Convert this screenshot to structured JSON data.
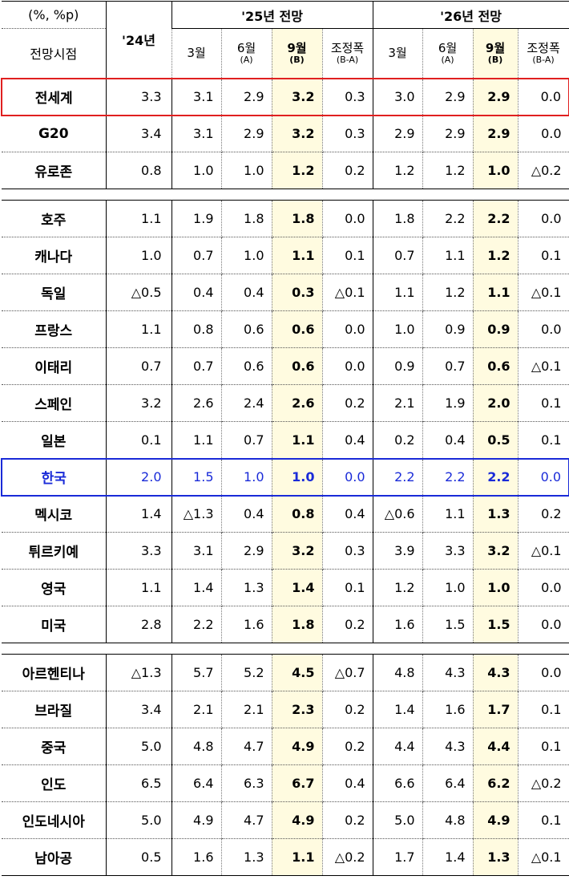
{
  "header": {
    "unit": "(%, %p)",
    "outlook_point": "전망시점",
    "year24": "'24년",
    "year25": "'25년 전망",
    "year26": "'26년 전망",
    "months": [
      {
        "main": "3월",
        "sub": ""
      },
      {
        "main": "6월",
        "sub": "(A)"
      },
      {
        "main": "9월",
        "sub": "(B)"
      },
      {
        "main": "조정폭",
        "sub": "(B-A)"
      },
      {
        "main": "3월",
        "sub": ""
      },
      {
        "main": "6월",
        "sub": "(A)"
      },
      {
        "main": "9월",
        "sub": "(B)"
      },
      {
        "main": "조정폭",
        "sub": "(B-A)"
      }
    ]
  },
  "rows": [
    {
      "name": "전세계",
      "v": [
        "3.3",
        "3.1",
        "2.9",
        "3.2",
        "0.3",
        "3.0",
        "2.9",
        "2.9",
        "0.0"
      ]
    },
    {
      "name": "G20",
      "v": [
        "3.4",
        "3.1",
        "2.9",
        "3.2",
        "0.3",
        "2.9",
        "2.9",
        "2.9",
        "0.0"
      ]
    },
    {
      "name": "유로존",
      "v": [
        "0.8",
        "1.0",
        "1.0",
        "1.2",
        "0.2",
        "1.2",
        "1.2",
        "1.0",
        "△0.2"
      ]
    },
    {
      "name": "호주",
      "v": [
        "1.1",
        "1.9",
        "1.8",
        "1.8",
        "0.0",
        "1.8",
        "2.2",
        "2.2",
        "0.0"
      ]
    },
    {
      "name": "캐나다",
      "v": [
        "1.0",
        "0.7",
        "1.0",
        "1.1",
        "0.1",
        "0.7",
        "1.1",
        "1.2",
        "0.1"
      ]
    },
    {
      "name": "독일",
      "v": [
        "△0.5",
        "0.4",
        "0.4",
        "0.3",
        "△0.1",
        "1.1",
        "1.2",
        "1.1",
        "△0.1"
      ]
    },
    {
      "name": "프랑스",
      "v": [
        "1.1",
        "0.8",
        "0.6",
        "0.6",
        "0.0",
        "1.0",
        "0.9",
        "0.9",
        "0.0"
      ]
    },
    {
      "name": "이태리",
      "v": [
        "0.7",
        "0.7",
        "0.6",
        "0.6",
        "0.0",
        "0.9",
        "0.7",
        "0.6",
        "△0.1"
      ]
    },
    {
      "name": "스페인",
      "v": [
        "3.2",
        "2.6",
        "2.4",
        "2.6",
        "0.2",
        "2.1",
        "1.9",
        "2.0",
        "0.1"
      ]
    },
    {
      "name": "일본",
      "v": [
        "0.1",
        "1.1",
        "0.7",
        "1.1",
        "0.4",
        "0.2",
        "0.4",
        "0.5",
        "0.1"
      ]
    },
    {
      "name": "한국",
      "v": [
        "2.0",
        "1.5",
        "1.0",
        "1.0",
        "0.0",
        "2.2",
        "2.2",
        "2.2",
        "0.0"
      ]
    },
    {
      "name": "멕시코",
      "v": [
        "1.4",
        "△1.3",
        "0.4",
        "0.8",
        "0.4",
        "△0.6",
        "1.1",
        "1.3",
        "0.2"
      ]
    },
    {
      "name": "튀르키예",
      "v": [
        "3.3",
        "3.1",
        "2.9",
        "3.2",
        "0.3",
        "3.9",
        "3.3",
        "3.2",
        "△0.1"
      ]
    },
    {
      "name": "영국",
      "v": [
        "1.1",
        "1.4",
        "1.3",
        "1.4",
        "0.1",
        "1.2",
        "1.0",
        "1.0",
        "0.0"
      ]
    },
    {
      "name": "미국",
      "v": [
        "2.8",
        "2.2",
        "1.6",
        "1.8",
        "0.2",
        "1.6",
        "1.5",
        "1.5",
        "0.0"
      ]
    },
    {
      "name": "아르헨티나",
      "v": [
        "△1.3",
        "5.7",
        "5.2",
        "4.5",
        "△0.7",
        "4.8",
        "4.3",
        "4.3",
        "0.0"
      ]
    },
    {
      "name": "브라질",
      "v": [
        "3.4",
        "2.1",
        "2.1",
        "2.3",
        "0.2",
        "1.4",
        "1.6",
        "1.7",
        "0.1"
      ]
    },
    {
      "name": "중국",
      "v": [
        "5.0",
        "4.8",
        "4.7",
        "4.9",
        "0.2",
        "4.4",
        "4.3",
        "4.4",
        "0.1"
      ]
    },
    {
      "name": "인도",
      "v": [
        "6.5",
        "6.4",
        "6.3",
        "6.7",
        "0.4",
        "6.6",
        "6.4",
        "6.2",
        "△0.2"
      ]
    },
    {
      "name": "인도네시아",
      "v": [
        "5.0",
        "4.9",
        "4.7",
        "4.9",
        "0.2",
        "5.0",
        "4.8",
        "4.9",
        "0.1"
      ]
    },
    {
      "name": "남아공",
      "v": [
        "0.5",
        "1.6",
        "1.3",
        "1.1",
        "△0.2",
        "1.7",
        "1.4",
        "1.3",
        "△0.1"
      ]
    }
  ],
  "colors": {
    "highlight_red": "#e02020",
    "highlight_blue": "#1a2bd8",
    "sep_col_fill": "#fffbe0"
  }
}
